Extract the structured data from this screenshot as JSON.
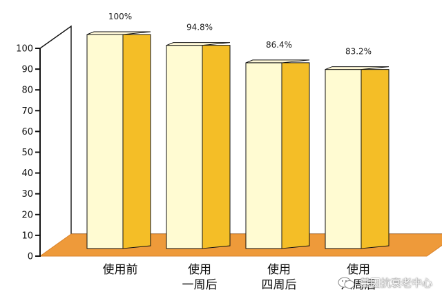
{
  "chart_data": {
    "type": "bar",
    "categories": [
      "使用前",
      "使用\n一周后",
      "使用\n四周后",
      "使用\n六周后"
    ],
    "values": [
      100,
      94.8,
      86.4,
      83.2
    ],
    "data_labels": [
      "100%",
      "94.8%",
      "86.4%",
      "83.2%"
    ],
    "yticks": [
      0,
      10,
      20,
      30,
      40,
      50,
      60,
      70,
      80,
      90,
      100
    ],
    "ylim": [
      0,
      100
    ],
    "title": "",
    "xlabel": "",
    "ylabel": "",
    "colors": {
      "bar_front": "#fffbd2",
      "bar_side": "#f4be27",
      "bar_top": "#fff8d8",
      "floor": "#ee9a3a",
      "frame": "#111111"
    },
    "style": "3d-column"
  },
  "watermark": {
    "icon": "wechat-icon",
    "text": "基因抗衰老中心"
  }
}
